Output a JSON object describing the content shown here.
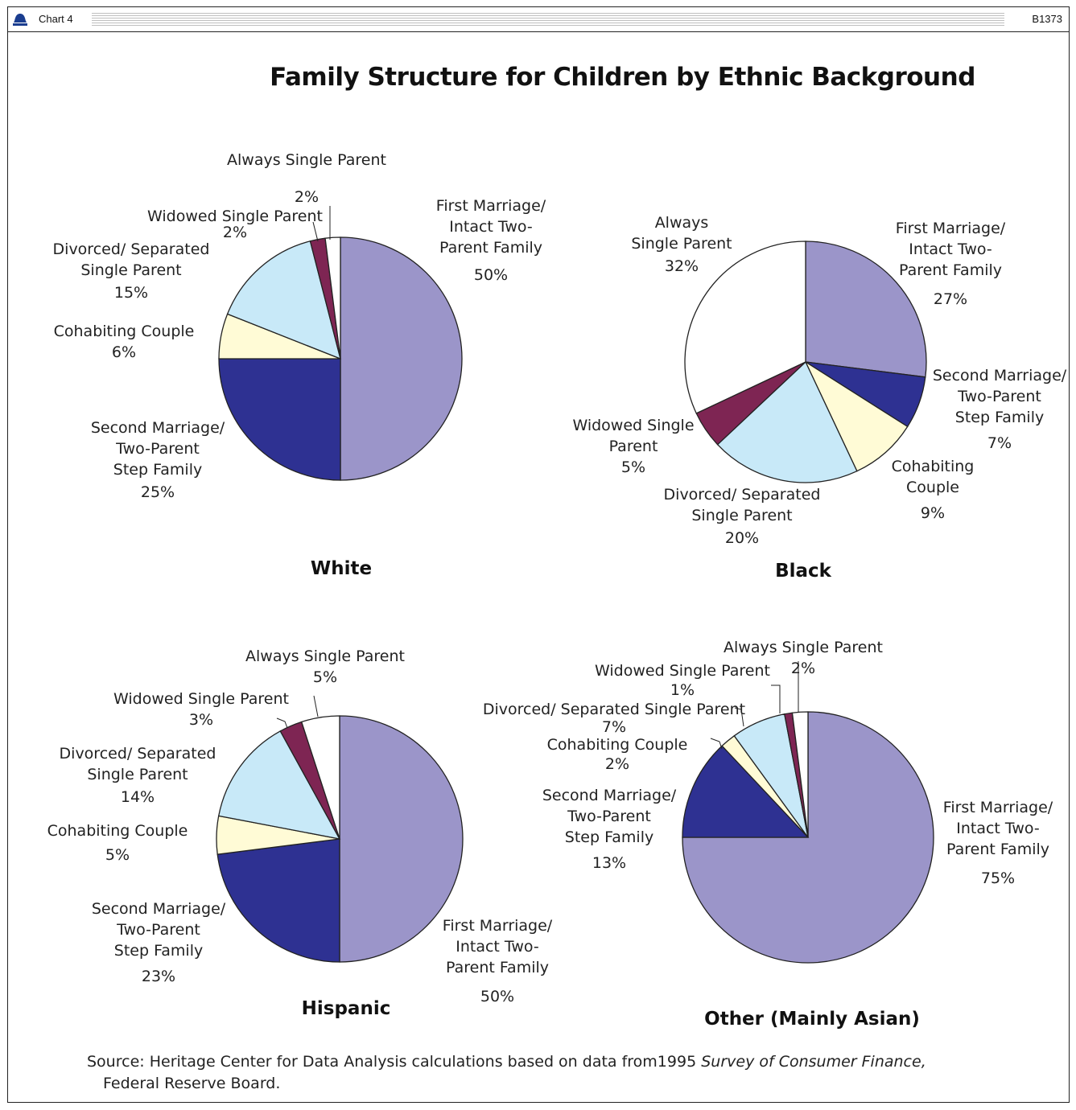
{
  "header": {
    "chart_label": "Chart 4",
    "code": "B1373",
    "icon": "bell-icon"
  },
  "title": "Family Structure for Children by Ethnic Background",
  "colors": {
    "first_marriage": "#9b95c9",
    "second_marriage": "#2e3192",
    "cohabiting": "#fffbd6",
    "divorced": "#c8e9f8",
    "widowed": "#7e2553",
    "always_single": "#ffffff"
  },
  "source": {
    "prefix": "Source:",
    "text": "Heritage Center for Data Analysis calculations based on data from1995",
    "italic": "Survey of Consumer Finance,",
    "line2": "Federal Reserve Board."
  },
  "chart_data": [
    {
      "type": "pie",
      "title": "White",
      "slices": [
        {
          "key": "first_marriage",
          "value": 50,
          "label_lines": [
            "First Marriage/",
            "Intact Two-",
            "Parent Family"
          ],
          "pct": "50%"
        },
        {
          "key": "second_marriage",
          "value": 25,
          "label_lines": [
            "Second Marriage/",
            "Two-Parent",
            "Step Family"
          ],
          "pct": "25%"
        },
        {
          "key": "cohabiting",
          "value": 6,
          "label_lines": [
            "Cohabiting Couple"
          ],
          "pct": "6%"
        },
        {
          "key": "divorced",
          "value": 15,
          "label_lines": [
            "Divorced/ Separated",
            "Single Parent"
          ],
          "pct": "15%"
        },
        {
          "key": "widowed",
          "value": 2,
          "label_lines": [
            "Widowed Single Parent"
          ],
          "pct": "2%"
        },
        {
          "key": "always_single",
          "value": 2,
          "label_lines": [
            "Always Single Parent"
          ],
          "pct": "2%"
        }
      ]
    },
    {
      "type": "pie",
      "title": "Black",
      "slices": [
        {
          "key": "first_marriage",
          "value": 27,
          "label_lines": [
            "First Marriage/",
            "Intact Two-",
            "Parent Family"
          ],
          "pct": "27%"
        },
        {
          "key": "second_marriage",
          "value": 7,
          "label_lines": [
            "Second Marriage/",
            "Two-Parent",
            "Step Family"
          ],
          "pct": "7%"
        },
        {
          "key": "cohabiting",
          "value": 9,
          "label_lines": [
            "Cohabiting",
            "Couple"
          ],
          "pct": "9%"
        },
        {
          "key": "divorced",
          "value": 20,
          "label_lines": [
            "Divorced/ Separated",
            "Single Parent"
          ],
          "pct": "20%"
        },
        {
          "key": "widowed",
          "value": 5,
          "label_lines": [
            "Widowed Single",
            "Parent"
          ],
          "pct": "5%"
        },
        {
          "key": "always_single",
          "value": 32,
          "label_lines": [
            "Always",
            "Single Parent"
          ],
          "pct": "32%"
        }
      ]
    },
    {
      "type": "pie",
      "title": "Hispanic",
      "slices": [
        {
          "key": "first_marriage",
          "value": 50,
          "label_lines": [
            "First Marriage/",
            "Intact Two-",
            "Parent Family"
          ],
          "pct": "50%"
        },
        {
          "key": "second_marriage",
          "value": 23,
          "label_lines": [
            "Second Marriage/",
            "Two-Parent",
            "Step Family"
          ],
          "pct": "23%"
        },
        {
          "key": "cohabiting",
          "value": 5,
          "label_lines": [
            "Cohabiting Couple"
          ],
          "pct": "5%"
        },
        {
          "key": "divorced",
          "value": 14,
          "label_lines": [
            "Divorced/ Separated",
            "Single Parent"
          ],
          "pct": "14%"
        },
        {
          "key": "widowed",
          "value": 3,
          "label_lines": [
            "Widowed Single Parent"
          ],
          "pct": "3%"
        },
        {
          "key": "always_single",
          "value": 5,
          "label_lines": [
            "Always Single Parent"
          ],
          "pct": "5%"
        }
      ]
    },
    {
      "type": "pie",
      "title": "Other (Mainly Asian)",
      "slices": [
        {
          "key": "first_marriage",
          "value": 75,
          "label_lines": [
            "First Marriage/",
            "Intact Two-",
            "Parent Family"
          ],
          "pct": "75%"
        },
        {
          "key": "second_marriage",
          "value": 13,
          "label_lines": [
            "Second Marriage/",
            "Two-Parent",
            "Step Family"
          ],
          "pct": "13%"
        },
        {
          "key": "cohabiting",
          "value": 2,
          "label_lines": [
            "Cohabiting Couple"
          ],
          "pct": "2%"
        },
        {
          "key": "divorced",
          "value": 7,
          "label_lines": [
            "Divorced/ Separated Single Parent"
          ],
          "pct": "7%"
        },
        {
          "key": "widowed",
          "value": 1,
          "label_lines": [
            "Widowed Single Parent"
          ],
          "pct": "1%"
        },
        {
          "key": "always_single",
          "value": 2,
          "label_lines": [
            "Always Single Parent"
          ],
          "pct": "2%"
        }
      ]
    }
  ]
}
